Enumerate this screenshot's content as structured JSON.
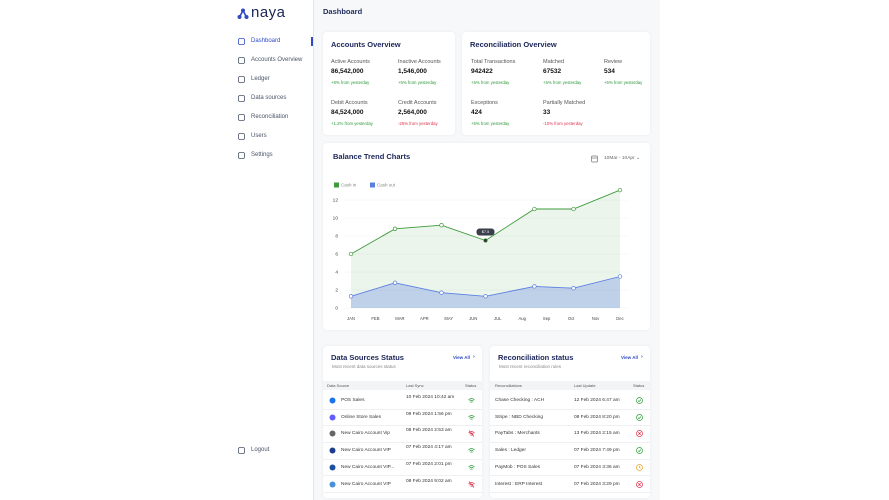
{
  "sidebar": {
    "brand": "naya",
    "nav": [
      "Dashboard",
      "Accounts Overview",
      "Ledger",
      "Data sources",
      "Reconciliation",
      "Users",
      "Settings"
    ],
    "logout": "Logout"
  },
  "header": {
    "title": "Dashboard"
  },
  "accounts_overview": {
    "title": "Accounts Overview",
    "items": [
      {
        "label": "Active Accounts",
        "value": "86,542,000",
        "change": "+8% from yesterday",
        "trend": "up"
      },
      {
        "label": "Inactive Accounts",
        "value": "1,546,000",
        "change": "+5% from yesterday",
        "trend": "up"
      },
      {
        "label": "Debit Accounts",
        "value": "84,524,000",
        "change": "+1.2% from yesterday",
        "trend": "up"
      },
      {
        "label": "Credit Accounts",
        "value": "2,564,000",
        "change": "-25% from yesterday",
        "trend": "down"
      }
    ]
  },
  "reconciliation_overview": {
    "title": "Reconciliation Overview",
    "items": [
      {
        "label": "Total Transactions",
        "value": "942422",
        "change": "+5% from yesterday",
        "trend": "up"
      },
      {
        "label": "Matched",
        "value": "67532",
        "change": "+5% from yesterday",
        "trend": "up"
      },
      {
        "label": "Review",
        "value": "534",
        "change": "+5% from yesterday",
        "trend": "up"
      },
      {
        "label": "Exceptions",
        "value": "424",
        "change": "+5% from yesterday",
        "trend": "up"
      },
      {
        "label": "Partially Matched",
        "value": "33",
        "change": "-10% from yesterday",
        "trend": "down"
      }
    ]
  },
  "chart_data": {
    "type": "line",
    "title": "Balance Trend Charts",
    "date_range": "10Mar - 10Apr",
    "x": [
      0,
      1.8,
      3.7,
      5.5,
      7.5,
      9.1,
      11
    ],
    "xlim": [
      0,
      11
    ],
    "xticks": [
      {
        "value": 0,
        "label": "JAN"
      },
      {
        "value": 1,
        "label": "FEB"
      },
      {
        "value": 2,
        "label": "MAR"
      },
      {
        "value": 3,
        "label": "APR"
      },
      {
        "value": 4,
        "label": "MAY"
      },
      {
        "value": 5,
        "label": "JUN"
      },
      {
        "value": 6,
        "label": "JUL"
      },
      {
        "value": 7,
        "label": "Aug"
      },
      {
        "value": 8,
        "label": "Sep"
      },
      {
        "value": 9,
        "label": "Oct"
      },
      {
        "value": 10,
        "label": "Nov"
      },
      {
        "value": 11,
        "label": "Dec"
      }
    ],
    "ylim": [
      0,
      13.5
    ],
    "yticks": [
      0,
      2,
      4,
      6,
      8,
      10,
      12
    ],
    "grid": true,
    "legend": "top-left",
    "annotation": "$7.5",
    "series": [
      {
        "name": "Cash in",
        "color": "#3f9a3c",
        "values": [
          6,
          8.8,
          9.2,
          7.5,
          11,
          11,
          13.1
        ]
      },
      {
        "name": "Cash out",
        "color": "#5b7fe0",
        "values": [
          1.3,
          2.8,
          1.7,
          1.3,
          2.4,
          2.2,
          3.5
        ]
      }
    ]
  },
  "data_sources_status": {
    "title": "Data Sources Status",
    "subtitle": "Most recent data sources status",
    "link": "View All",
    "columns": [
      "Data Source",
      "Last Sync",
      "Status"
    ],
    "rows": [
      {
        "name": "POS Sales",
        "time": "10 Feb 2024 10:42 am",
        "status": "ok"
      },
      {
        "name": "Online Store Sales",
        "time": "09 Feb 2024 1:56 pm",
        "status": "ok"
      },
      {
        "name": "New Cairo Account Vip",
        "time": "08 Feb 2024 2:53 am",
        "status": "error"
      },
      {
        "name": "New Cairo Account VIP",
        "time": "07 Feb 2024 4:17 am",
        "status": "ok"
      },
      {
        "name": "New Cairo Account VIP...",
        "time": "07 Feb 2024 2:01 pm",
        "status": "ok"
      },
      {
        "name": "New Cairo Account VIP",
        "time": "08 Feb 2024 9:02 am",
        "status": "error"
      }
    ]
  },
  "reconciliation_status": {
    "title": "Reconciliation status",
    "subtitle": "Most recent reconciliation rules",
    "link": "View All",
    "columns": [
      "Reconciliations",
      "Last Update",
      "Status"
    ],
    "rows": [
      {
        "name": "Chase Checking : ACH",
        "time": "12 Feb 2024 6:47 am",
        "status": "ok"
      },
      {
        "name": "Stripe : NBD Checking",
        "time": "08 Feb 2024 8:20 pm",
        "status": "ok"
      },
      {
        "name": "PayTabs : Merchants",
        "time": "13 Feb 2024 2:15 am",
        "status": "error"
      },
      {
        "name": "Sales : Ledger",
        "time": "07 Feb 2024 7:49 pm",
        "status": "ok"
      },
      {
        "name": "PayMob : POS Sales",
        "time": "07 Feb 2024 3:36 am",
        "status": "pending"
      },
      {
        "name": "Interest : ERP Interest",
        "time": "07 Feb 2024 3:29 pm",
        "status": "error"
      }
    ]
  }
}
